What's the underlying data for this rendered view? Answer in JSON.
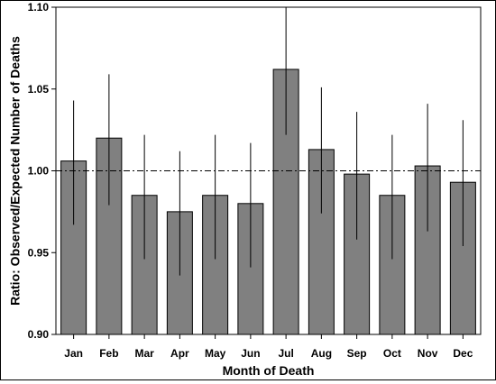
{
  "chart_data": {
    "type": "bar",
    "title": "",
    "xlabel": "Month of Death",
    "ylabel": "Ratio: Observed/Expected Number of Deaths",
    "categories": [
      "Jan",
      "Feb",
      "Mar",
      "Apr",
      "May",
      "Jun",
      "Jul",
      "Aug",
      "Sep",
      "Oct",
      "Nov",
      "Dec"
    ],
    "values": [
      1.006,
      1.02,
      0.985,
      0.975,
      0.985,
      0.98,
      1.062,
      1.013,
      0.998,
      0.985,
      1.003,
      0.993
    ],
    "error_low": [
      0.967,
      0.979,
      0.946,
      0.936,
      0.946,
      0.941,
      1.022,
      0.974,
      0.958,
      0.946,
      0.963,
      0.954
    ],
    "error_high": [
      1.043,
      1.059,
      1.022,
      1.012,
      1.022,
      1.017,
      1.1,
      1.051,
      1.036,
      1.022,
      1.041,
      1.031
    ],
    "ylim": [
      0.9,
      1.1
    ],
    "yticks": [
      "0.90",
      "0.95",
      "1.00",
      "1.05",
      "1.10"
    ],
    "reference_line": 1.0,
    "grid": false,
    "bar_color": "#808080",
    "bar_edge_color": "#000000"
  }
}
